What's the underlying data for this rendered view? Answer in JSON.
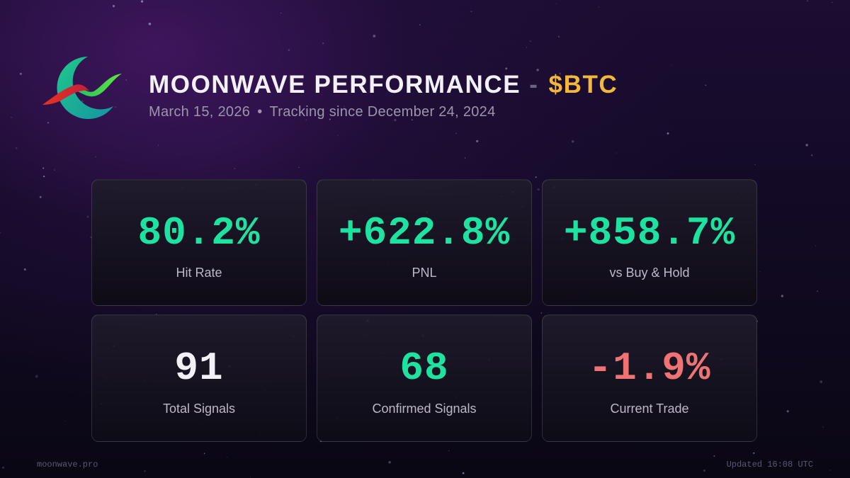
{
  "header": {
    "title": "MOONWAVE PERFORMANCE",
    "separator": "-",
    "ticker": "$BTC",
    "date": "March 15, 2026",
    "bullet": "•",
    "tracking": "Tracking since December 24, 2024"
  },
  "colors": {
    "positive": "#1ee3a0",
    "negative": "#f07373",
    "neutral": "#f3f1f7",
    "ticker": "#f3b83a"
  },
  "metrics": [
    {
      "value": "80.2%",
      "label": "Hit Rate",
      "tone": "positive"
    },
    {
      "value": "+622.8%",
      "label": "PNL",
      "tone": "positive"
    },
    {
      "value": "+858.7%",
      "label": "vs Buy & Hold",
      "tone": "positive"
    },
    {
      "value": "91",
      "label": "Total Signals",
      "tone": "neutral"
    },
    {
      "value": "68",
      "label": "Confirmed Signals",
      "tone": "positive"
    },
    {
      "value": "-1.9%",
      "label": "Current Trade",
      "tone": "negative"
    }
  ],
  "footer": {
    "site": "moonwave.pro",
    "updated": "Updated 16:08 UTC"
  }
}
